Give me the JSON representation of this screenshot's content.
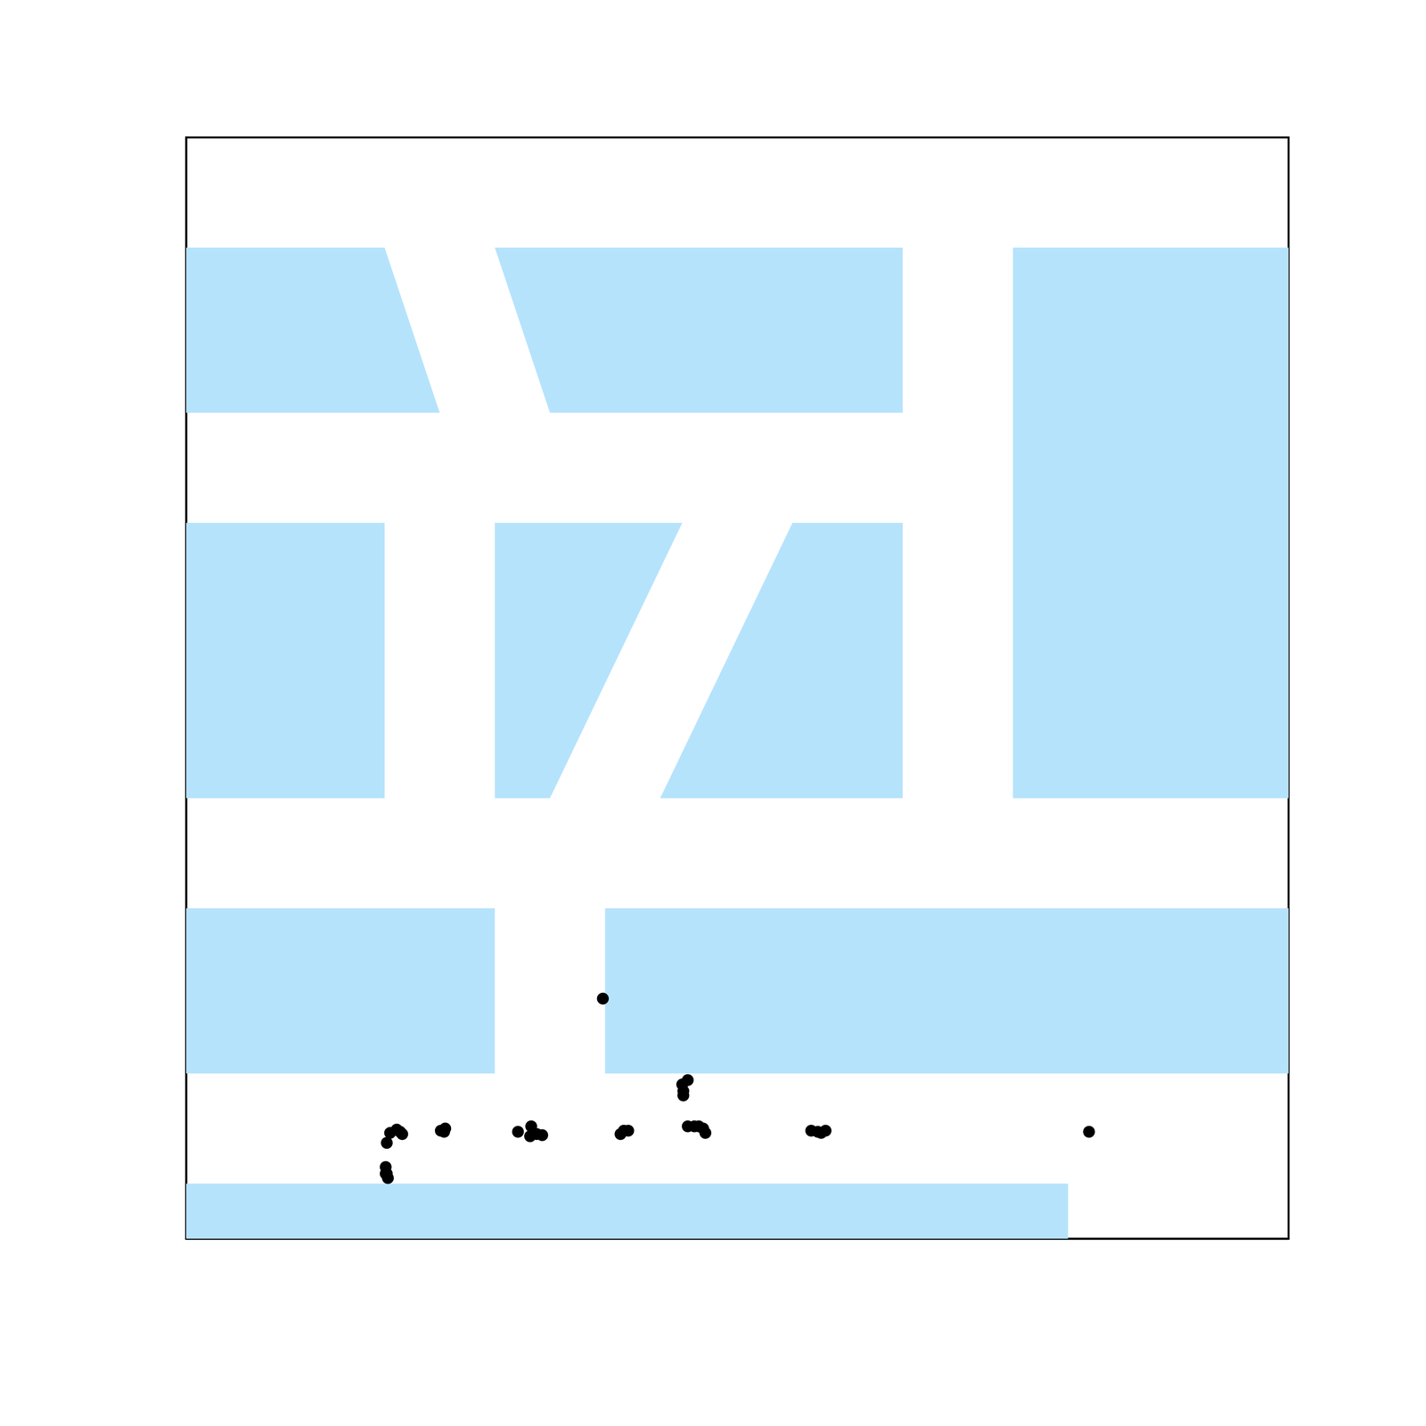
{
  "chart_data": {
    "type": "scatter",
    "xlim": [
      0,
      100
    ],
    "ylim": [
      0,
      100
    ],
    "tick_labels": false,
    "grid": false,
    "color": "#000000",
    "marker": "circle",
    "x": [
      37.8,
      45.5,
      45.0,
      45.1,
      45.1,
      45.5,
      46.1,
      46.5,
      46.9,
      47.1,
      56.7,
      57.3,
      57.6,
      58.0,
      81.9,
      39.4,
      39.7,
      40.1,
      30.1,
      31.3,
      31.2,
      31.8,
      32.3,
      23.4,
      23.5,
      23.1,
      18.5,
      19.1,
      19.6,
      19.4,
      18.2,
      18.1,
      18.2,
      18.3,
      18.1
    ],
    "y": [
      21.8,
      14.4,
      14.0,
      13.4,
      13.0,
      10.2,
      10.2,
      10.2,
      10.0,
      9.6,
      9.8,
      9.7,
      9.6,
      9.8,
      9.7,
      9.5,
      9.8,
      9.8,
      9.7,
      10.2,
      9.3,
      9.5,
      9.4,
      9.7,
      10.0,
      9.8,
      9.6,
      9.9,
      9.5,
      9.7,
      8.7,
      6.5,
      5.9,
      5.5,
      5.9
    ],
    "regions": {
      "color": "#b6e3fc",
      "polygons": [
        [
          [
            0,
            90
          ],
          [
            18,
            90
          ],
          [
            23,
            75
          ],
          [
            0,
            75
          ]
        ],
        [
          [
            28,
            90
          ],
          [
            65,
            90
          ],
          [
            65,
            75
          ],
          [
            33,
            75
          ]
        ],
        [
          [
            75,
            90
          ],
          [
            100,
            90
          ],
          [
            100,
            40
          ],
          [
            75,
            40
          ]
        ],
        [
          [
            0,
            65
          ],
          [
            18,
            65
          ],
          [
            18,
            40
          ],
          [
            0,
            40
          ]
        ],
        [
          [
            28,
            65
          ],
          [
            45,
            65
          ],
          [
            33,
            40
          ],
          [
            28,
            40
          ]
        ],
        [
          [
            55,
            65
          ],
          [
            65,
            65
          ],
          [
            65,
            40
          ],
          [
            43,
            40
          ]
        ],
        [
          [
            0,
            30
          ],
          [
            28,
            30
          ],
          [
            28,
            15
          ],
          [
            0,
            15
          ]
        ],
        [
          [
            38,
            30
          ],
          [
            100,
            30
          ],
          [
            100,
            15
          ],
          [
            38,
            15
          ]
        ],
        [
          [
            0,
            5
          ],
          [
            80,
            5
          ],
          [
            80,
            0
          ],
          [
            0,
            0
          ]
        ]
      ]
    }
  }
}
